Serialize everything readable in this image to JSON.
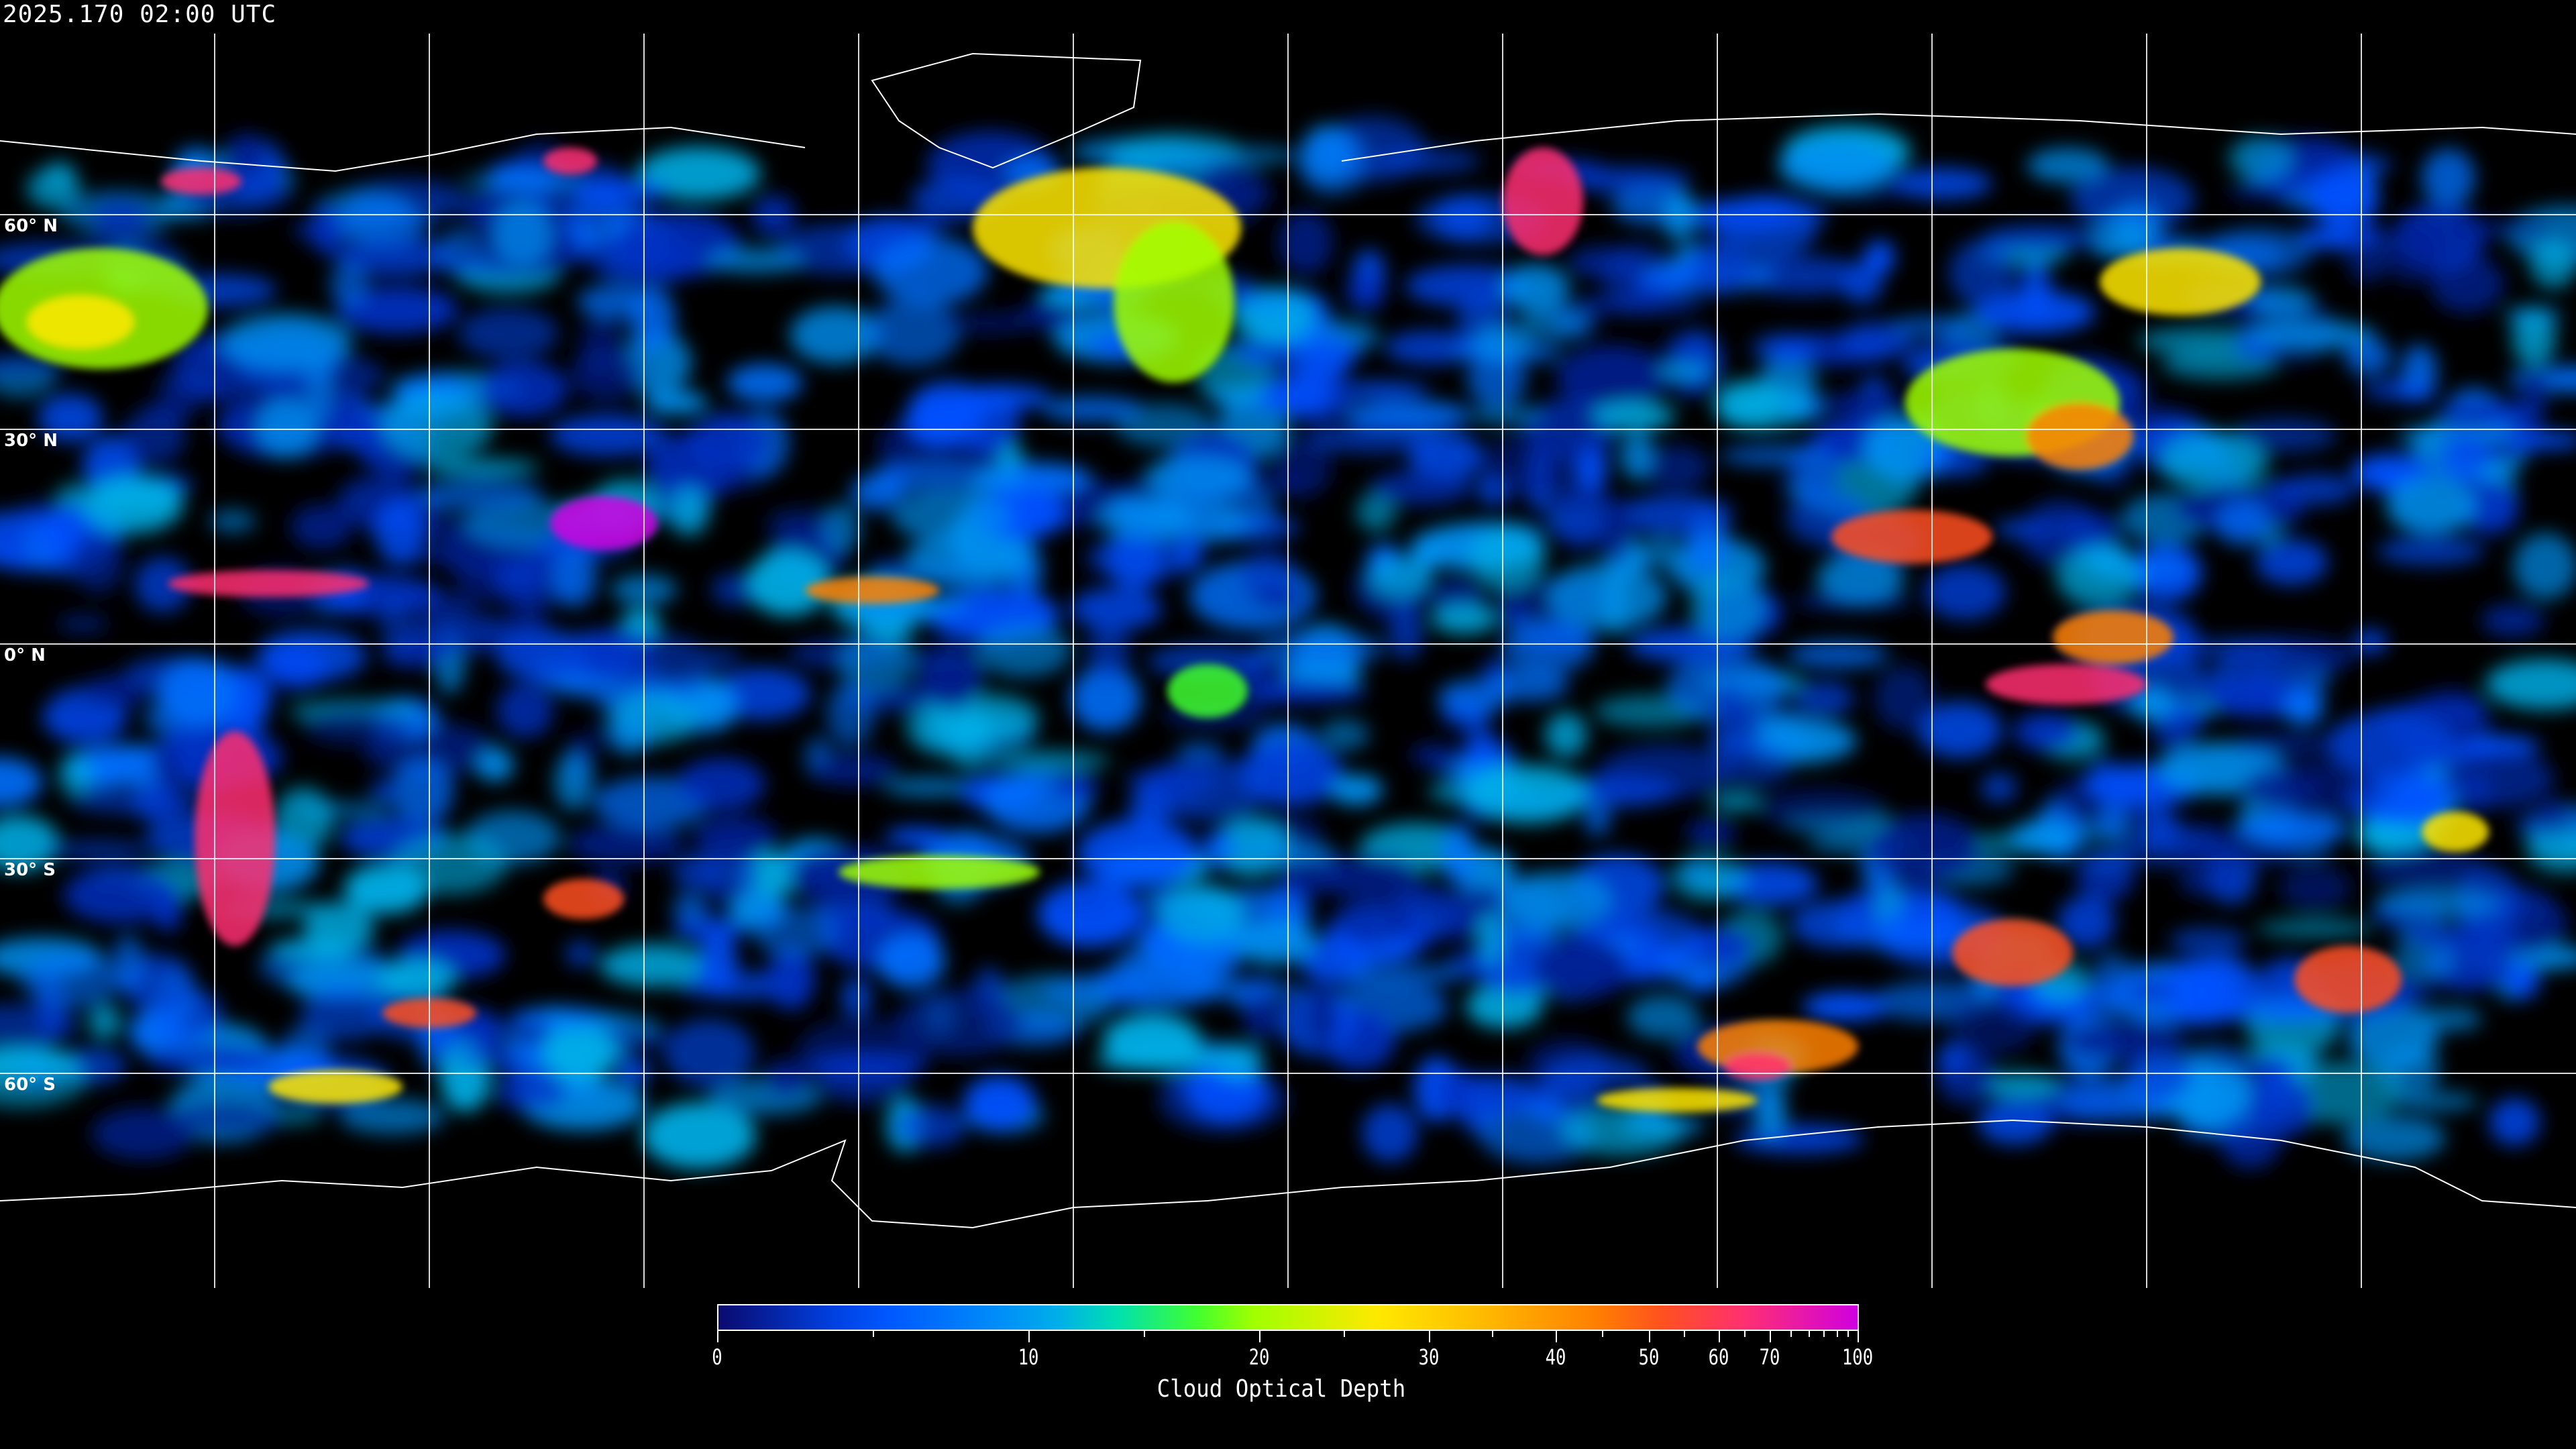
{
  "header": {
    "timestamp": "2025.170 02:00 UTC"
  },
  "map": {
    "projection": "equirectangular",
    "gridlines": true,
    "lat_labels": [
      "60° N",
      "30° N",
      "0° N",
      "30° S",
      "60° S"
    ],
    "background_color": "#000000",
    "gridline_color": "#ffffff"
  },
  "colorbar": {
    "title": "Cloud Optical Depth",
    "range": [
      0,
      100
    ],
    "tick_labels": [
      "0",
      "10",
      "20",
      "30",
      "40",
      "50",
      "60",
      "70",
      "100"
    ],
    "minor_ticks": [
      5,
      15,
      25,
      35,
      45,
      55,
      65,
      75,
      80,
      85,
      90,
      95
    ],
    "colors": [
      "#0a0a6e",
      "#0058ff",
      "#00b0e8",
      "#40ff30",
      "#ffe800",
      "#ff8000",
      "#ff3070",
      "#d000e0"
    ]
  }
}
